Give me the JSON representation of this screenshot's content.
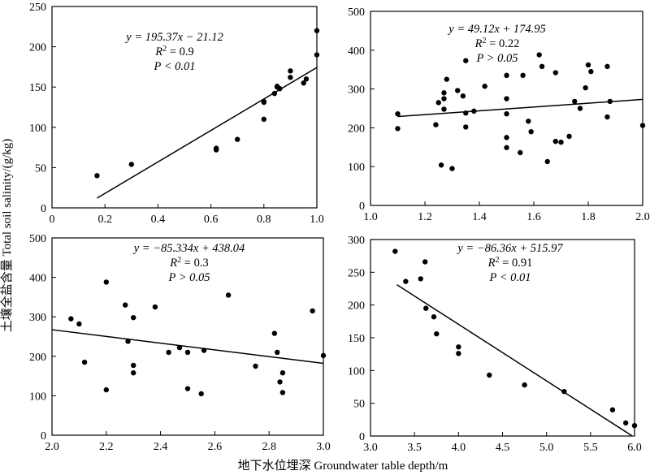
{
  "xlabel": "地下水位埋深 Groundwater table depth/m",
  "ylabel": "土壤全盐含量 Total soil salinity/(g/kg)",
  "chart_data": [
    {
      "type": "scatter",
      "panel": "top-left",
      "xlim": [
        0,
        1.0
      ],
      "ylim": [
        0,
        250
      ],
      "xticks": [
        "0",
        "0.2",
        "0.4",
        "0.6",
        "0.8",
        "1.0"
      ],
      "yticks": [
        "0",
        "50",
        "100",
        "150",
        "200",
        "250"
      ],
      "xtick_values": [
        0,
        0.2,
        0.4,
        0.6,
        0.8,
        1.0
      ],
      "ytick_values": [
        0,
        50,
        100,
        150,
        200,
        250
      ],
      "equation": "y = 195.37x − 21.12",
      "r2": "R2 = 0.9",
      "p": "P < 0.01",
      "fit": {
        "slope": 195.37,
        "intercept": -21.12,
        "x_range": [
          0.17,
          1.0
        ]
      },
      "points": [
        [
          0.17,
          40
        ],
        [
          0.3,
          54
        ],
        [
          0.62,
          72
        ],
        [
          0.62,
          74
        ],
        [
          0.7,
          85
        ],
        [
          0.8,
          110
        ],
        [
          0.8,
          131
        ],
        [
          0.8,
          132
        ],
        [
          0.84,
          142
        ],
        [
          0.85,
          150
        ],
        [
          0.85,
          151
        ],
        [
          0.86,
          148
        ],
        [
          0.9,
          162
        ],
        [
          0.9,
          170
        ],
        [
          0.95,
          155
        ],
        [
          0.96,
          160
        ],
        [
          1.0,
          190
        ],
        [
          1.0,
          220
        ]
      ]
    },
    {
      "type": "scatter",
      "panel": "top-right",
      "xlim": [
        1.0,
        2.0
      ],
      "ylim": [
        0,
        500
      ],
      "xticks": [
        "1.0",
        "1.2",
        "1.4",
        "1.6",
        "1.8",
        "2.0"
      ],
      "yticks": [
        "0",
        "100",
        "200",
        "300",
        "400",
        "500"
      ],
      "xtick_values": [
        1.0,
        1.2,
        1.4,
        1.6,
        1.8,
        2.0
      ],
      "ytick_values": [
        0,
        100,
        200,
        300,
        400,
        500
      ],
      "equation": "y = 49.12x + 174.95",
      "r2": "R2 = 0.22",
      "p": "P > 0.05",
      "fit": {
        "slope": 49.12,
        "intercept": 174.95,
        "x_range": [
          1.1,
          2.0
        ]
      },
      "points": [
        [
          1.1,
          236
        ],
        [
          1.1,
          198
        ],
        [
          1.24,
          208
        ],
        [
          1.25,
          265
        ],
        [
          1.26,
          104
        ],
        [
          1.27,
          290
        ],
        [
          1.27,
          275
        ],
        [
          1.27,
          248
        ],
        [
          1.28,
          325
        ],
        [
          1.3,
          95
        ],
        [
          1.32,
          296
        ],
        [
          1.34,
          282
        ],
        [
          1.35,
          373
        ],
        [
          1.35,
          238
        ],
        [
          1.35,
          202
        ],
        [
          1.38,
          243
        ],
        [
          1.42,
          307
        ],
        [
          1.5,
          335
        ],
        [
          1.5,
          275
        ],
        [
          1.5,
          236
        ],
        [
          1.5,
          175
        ],
        [
          1.5,
          149
        ],
        [
          1.55,
          136
        ],
        [
          1.56,
          335
        ],
        [
          1.58,
          217
        ],
        [
          1.59,
          190
        ],
        [
          1.62,
          388
        ],
        [
          1.63,
          358
        ],
        [
          1.65,
          113
        ],
        [
          1.68,
          342
        ],
        [
          1.68,
          165
        ],
        [
          1.7,
          163
        ],
        [
          1.73,
          178
        ],
        [
          1.75,
          268
        ],
        [
          1.77,
          250
        ],
        [
          1.79,
          303
        ],
        [
          1.8,
          362
        ],
        [
          1.81,
          345
        ],
        [
          1.87,
          358
        ],
        [
          1.87,
          228
        ],
        [
          1.88,
          268
        ],
        [
          2.0,
          206
        ]
      ]
    },
    {
      "type": "scatter",
      "panel": "bottom-left",
      "xlim": [
        2.0,
        3.0
      ],
      "ylim": [
        0,
        500
      ],
      "xticks": [
        "2.0",
        "2.2",
        "2.4",
        "2.6",
        "2.8",
        "3.0"
      ],
      "yticks": [
        "0",
        "100",
        "200",
        "300",
        "400",
        "500"
      ],
      "xtick_values": [
        2.0,
        2.2,
        2.4,
        2.6,
        2.8,
        3.0
      ],
      "ytick_values": [
        0,
        100,
        200,
        300,
        400,
        500
      ],
      "equation": "y = −85.334x + 438.04",
      "r2": "R2 = 0.3",
      "p": "P > 0.05",
      "fit": {
        "slope": -85.334,
        "intercept": 438.04,
        "x_range": [
          2.0,
          3.0
        ]
      },
      "points": [
        [
          2.07,
          295
        ],
        [
          2.1,
          282
        ],
        [
          2.12,
          185
        ],
        [
          2.2,
          388
        ],
        [
          2.2,
          115
        ],
        [
          2.27,
          330
        ],
        [
          2.28,
          238
        ],
        [
          2.3,
          298
        ],
        [
          2.3,
          177
        ],
        [
          2.3,
          158
        ],
        [
          2.38,
          325
        ],
        [
          2.43,
          210
        ],
        [
          2.47,
          222
        ],
        [
          2.5,
          210
        ],
        [
          2.5,
          118
        ],
        [
          2.55,
          105
        ],
        [
          2.56,
          215
        ],
        [
          2.65,
          355
        ],
        [
          2.75,
          175
        ],
        [
          2.82,
          258
        ],
        [
          2.83,
          210
        ],
        [
          2.84,
          135
        ],
        [
          2.85,
          158
        ],
        [
          2.85,
          108
        ],
        [
          2.96,
          315
        ],
        [
          3.0,
          202
        ]
      ]
    },
    {
      "type": "scatter",
      "panel": "bottom-right",
      "xlim": [
        3.0,
        6.0
      ],
      "ylim": [
        0,
        300
      ],
      "xticks": [
        "3.0",
        "3.5",
        "4.0",
        "4.5",
        "5.0",
        "5.5",
        "6.0"
      ],
      "yticks": [
        "0",
        "50",
        "100",
        "150",
        "200",
        "250",
        "300"
      ],
      "xtick_values": [
        3.0,
        3.5,
        4.0,
        4.5,
        5.0,
        5.5,
        6.0
      ],
      "ytick_values": [
        0,
        50,
        100,
        150,
        200,
        250,
        300
      ],
      "equation": "y = −86.36x + 515.97",
      "r2": "R2 = 0.91",
      "p": "P < 0.01",
      "fit": {
        "slope": -86.36,
        "intercept": 515.97,
        "x_range": [
          3.3,
          5.97
        ]
      },
      "points": [
        [
          3.28,
          282
        ],
        [
          3.4,
          236
        ],
        [
          3.57,
          240
        ],
        [
          3.62,
          266
        ],
        [
          3.63,
          195
        ],
        [
          3.72,
          182
        ],
        [
          3.75,
          156
        ],
        [
          4.0,
          136
        ],
        [
          4.0,
          126
        ],
        [
          4.35,
          93
        ],
        [
          4.75,
          78
        ],
        [
          5.2,
          68
        ],
        [
          5.75,
          40
        ],
        [
          5.9,
          20
        ],
        [
          6.0,
          16
        ]
      ]
    }
  ]
}
